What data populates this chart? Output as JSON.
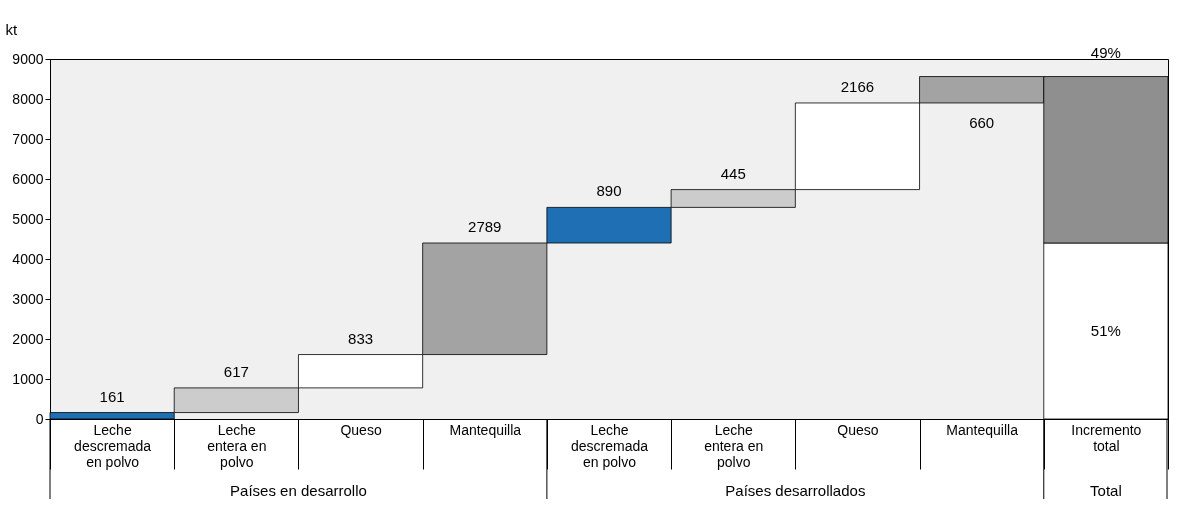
{
  "chart_data": {
    "type": "bar",
    "ylabel": "kt",
    "categories": [
      "Leche descremada en polvo",
      "Leche entera en polvo",
      "Queso",
      "Mantequilla",
      "Leche descremada en polvo",
      "Leche entera en polvo",
      "Queso",
      "Mantequilla",
      "Incremento total"
    ],
    "series": [
      {
        "values": [
          161,
          617,
          833,
          2789,
          890,
          445,
          2166,
          660,
          null
        ],
        "base": [
          0,
          161,
          778,
          1611,
          4400,
          5290,
          5735,
          7901,
          null
        ],
        "colors": [
          "#1f6fb4",
          "#cccccc",
          "#ffffff",
          "#a3a3a3",
          "#1f6fb4",
          "#cccccc",
          "#ffffff",
          "#a3a3a3",
          null
        ],
        "value_labels": [
          "161",
          "617",
          "833",
          "2789",
          "890",
          "445",
          "2166",
          "660",
          null
        ]
      },
      {
        "values": [
          null,
          null,
          null,
          null,
          null,
          null,
          null,
          null,
          4400
        ],
        "base": [
          null,
          null,
          null,
          null,
          null,
          null,
          null,
          null,
          0
        ],
        "color": "#ffffff"
      },
      {
        "values": [
          null,
          null,
          null,
          null,
          null,
          null,
          null,
          null,
          4161
        ],
        "base": [
          null,
          null,
          null,
          null,
          null,
          null,
          null,
          null,
          4400
        ],
        "color": "#8f8f8f"
      }
    ],
    "ylim": [
      0,
      9000
    ],
    "yticks": [
      0,
      1000,
      2000,
      3000,
      4000,
      5000,
      6000,
      7000,
      8000,
      9000
    ],
    "annotations": [
      "Países en desarrollo",
      "Países desarrollados",
      "Total",
      "51%",
      "49%"
    ],
    "grid": false
  }
}
